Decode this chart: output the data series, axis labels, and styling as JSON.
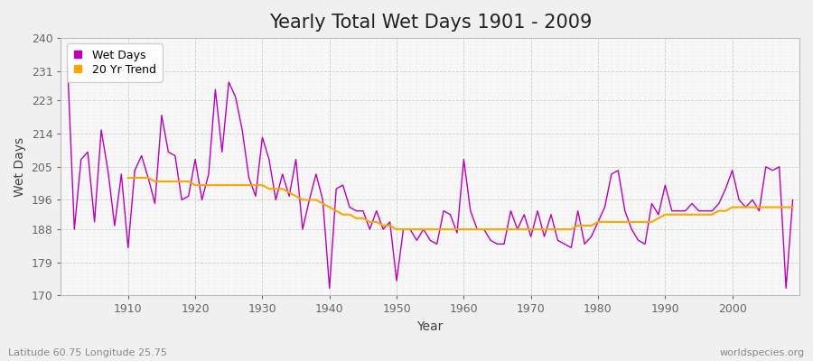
{
  "title": "Yearly Total Wet Days 1901 - 2009",
  "xlabel": "Year",
  "ylabel": "Wet Days",
  "footnote_left": "Latitude 60.75 Longitude 25.75",
  "footnote_right": "worldspecies.org",
  "years": [
    1901,
    1902,
    1903,
    1904,
    1905,
    1906,
    1907,
    1908,
    1909,
    1910,
    1911,
    1912,
    1913,
    1914,
    1915,
    1916,
    1917,
    1918,
    1919,
    1920,
    1921,
    1922,
    1923,
    1924,
    1925,
    1926,
    1927,
    1928,
    1929,
    1930,
    1931,
    1932,
    1933,
    1934,
    1935,
    1936,
    1937,
    1938,
    1939,
    1940,
    1941,
    1942,
    1943,
    1944,
    1945,
    1946,
    1947,
    1948,
    1949,
    1950,
    1951,
    1952,
    1953,
    1954,
    1955,
    1956,
    1957,
    1958,
    1959,
    1960,
    1961,
    1962,
    1963,
    1964,
    1965,
    1966,
    1967,
    1968,
    1969,
    1970,
    1971,
    1972,
    1973,
    1974,
    1975,
    1976,
    1977,
    1978,
    1979,
    1980,
    1981,
    1982,
    1983,
    1984,
    1985,
    1986,
    1987,
    1988,
    1989,
    1990,
    1991,
    1992,
    1993,
    1994,
    1995,
    1996,
    1997,
    1998,
    1999,
    2000,
    2001,
    2002,
    2003,
    2004,
    2005,
    2006,
    2007,
    2008,
    2009
  ],
  "wet_days": [
    232,
    188,
    207,
    209,
    190,
    215,
    204,
    189,
    203,
    183,
    204,
    208,
    202,
    195,
    219,
    209,
    208,
    196,
    197,
    207,
    196,
    203,
    226,
    209,
    228,
    224,
    215,
    202,
    197,
    213,
    207,
    196,
    203,
    197,
    207,
    188,
    196,
    203,
    196,
    172,
    199,
    200,
    194,
    193,
    193,
    188,
    193,
    188,
    190,
    174,
    188,
    188,
    185,
    188,
    185,
    184,
    193,
    192,
    187,
    207,
    193,
    188,
    188,
    185,
    184,
    184,
    193,
    188,
    192,
    186,
    193,
    186,
    192,
    185,
    184,
    183,
    193,
    184,
    186,
    190,
    194,
    203,
    204,
    193,
    188,
    185,
    184,
    195,
    192,
    200,
    193,
    193,
    193,
    195,
    193,
    193,
    193,
    195,
    199,
    204,
    196,
    194,
    196,
    193,
    205,
    204,
    205,
    172,
    196
  ],
  "trend_years": [
    1901,
    1902,
    1903,
    1904,
    1905,
    1906,
    1907,
    1908,
    1909,
    1910,
    1911,
    1912,
    1913,
    1914,
    1915,
    1916,
    1917,
    1918,
    1919,
    1920,
    1921,
    1922,
    1923,
    1924,
    1925,
    1926,
    1927,
    1928,
    1929,
    1930,
    1931,
    1932,
    1933,
    1934,
    1935,
    1936,
    1937,
    1938,
    1939,
    1940,
    1941,
    1942,
    1943,
    1944,
    1945,
    1946,
    1947,
    1948,
    1949,
    1950,
    1951,
    1952,
    1953,
    1954,
    1955,
    1956,
    1957,
    1958,
    1959,
    1960,
    1961,
    1962,
    1963,
    1964,
    1965,
    1966,
    1967,
    1968,
    1969,
    1970,
    1971,
    1972,
    1973,
    1974,
    1975,
    1976,
    1977,
    1978,
    1979,
    1980,
    1981,
    1982,
    1983,
    1984,
    1985,
    1986,
    1987,
    1988,
    1989,
    1990,
    1991,
    1992,
    1993,
    1994,
    1995,
    1996,
    1997,
    1998,
    1999,
    2000,
    2001,
    2002,
    2003,
    2004,
    2005,
    2006,
    2007,
    2008,
    2009
  ],
  "trend_values": [
    null,
    null,
    null,
    null,
    null,
    null,
    null,
    null,
    null,
    202,
    202,
    202,
    202,
    201,
    201,
    201,
    201,
    201,
    201,
    200,
    200,
    200,
    200,
    200,
    200,
    200,
    200,
    200,
    200,
    200,
    199,
    199,
    199,
    198,
    197,
    196,
    196,
    196,
    195,
    194,
    193,
    192,
    192,
    191,
    191,
    190,
    190,
    189,
    189,
    188,
    188,
    188,
    188,
    188,
    188,
    188,
    188,
    188,
    188,
    188,
    188,
    188,
    188,
    188,
    188,
    188,
    188,
    188,
    188,
    188,
    188,
    188,
    188,
    188,
    188,
    188,
    189,
    189,
    189,
    190,
    190,
    190,
    190,
    190,
    190,
    190,
    190,
    190,
    191,
    192,
    192,
    192,
    192,
    192,
    192,
    192,
    192,
    193,
    193,
    194,
    194,
    194,
    194,
    194,
    194,
    194,
    194,
    194,
    194
  ],
  "wet_days_color": "#bb00bb",
  "trend_color": "#ffa500",
  "fig_bg_color": "#f0f0f0",
  "plot_bg_color": "#f8f8f8",
  "ylim": [
    170,
    240
  ],
  "yticks": [
    170,
    179,
    188,
    196,
    205,
    214,
    223,
    231,
    240
  ],
  "xlim": [
    1900,
    2010
  ],
  "xticks": [
    1910,
    1920,
    1930,
    1940,
    1950,
    1960,
    1970,
    1980,
    1990,
    2000
  ],
  "title_fontsize": 15,
  "axis_label_fontsize": 10,
  "tick_fontsize": 9,
  "footnote_fontsize": 8,
  "legend_wet_label": "Wet Days",
  "legend_trend_label": "20 Yr Trend"
}
